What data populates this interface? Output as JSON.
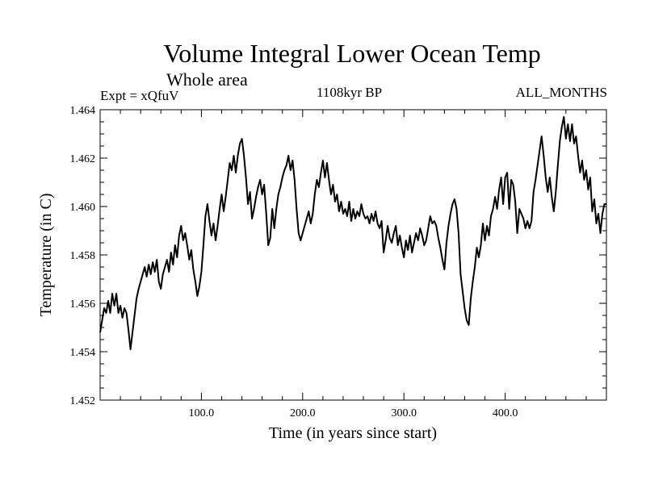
{
  "chart_data": {
    "type": "line",
    "title": "Volume Integral Lower Ocean Temp",
    "subtitle": "Whole area",
    "left_label": "Expt = xQfuV",
    "center_label": "1108kyr BP",
    "right_label": "ALL_MONTHS",
    "xlabel": "Time (in years since start)",
    "ylabel": "Temperature (in C)",
    "xlim": [
      0,
      500
    ],
    "ylim": [
      1.452,
      1.464
    ],
    "xticks": [
      100,
      200,
      300,
      400
    ],
    "xtick_labels": [
      "100.0",
      "200.0",
      "300.0",
      "400.0"
    ],
    "yticks": [
      1.452,
      1.454,
      1.456,
      1.458,
      1.46,
      1.462,
      1.464
    ],
    "ytick_labels": [
      "1.452",
      "1.454",
      "1.456",
      "1.458",
      "1.460",
      "1.462",
      "1.464"
    ],
    "grid": false,
    "series": [
      {
        "name": "temperature",
        "x": [
          0,
          2,
          4,
          6,
          8,
          10,
          12,
          14,
          16,
          18,
          20,
          22,
          24,
          26,
          28,
          30,
          32,
          34,
          36,
          38,
          40,
          42,
          44,
          46,
          48,
          50,
          52,
          54,
          56,
          58,
          60,
          62,
          64,
          66,
          68,
          70,
          72,
          74,
          76,
          78,
          80,
          82,
          84,
          86,
          88,
          90,
          92,
          94,
          96,
          98,
          100,
          102,
          104,
          106,
          108,
          110,
          112,
          114,
          116,
          118,
          120,
          122,
          124,
          126,
          128,
          130,
          132,
          134,
          136,
          138,
          140,
          142,
          144,
          146,
          148,
          150,
          152,
          154,
          156,
          158,
          160,
          162,
          164,
          166,
          168,
          170,
          172,
          174,
          176,
          178,
          180,
          182,
          184,
          186,
          188,
          190,
          192,
          194,
          196,
          198,
          200,
          202,
          204,
          206,
          208,
          210,
          212,
          214,
          216,
          218,
          220,
          222,
          224,
          226,
          228,
          230,
          232,
          234,
          236,
          238,
          240,
          242,
          244,
          246,
          248,
          250,
          252,
          254,
          256,
          258,
          260,
          262,
          264,
          266,
          268,
          270,
          272,
          274,
          276,
          278,
          280,
          282,
          284,
          286,
          288,
          290,
          292,
          294,
          296,
          298,
          300,
          302,
          304,
          306,
          308,
          310,
          312,
          314,
          316,
          318,
          320,
          322,
          324,
          326,
          328,
          330,
          332,
          334,
          336,
          338,
          340,
          342,
          344,
          346,
          348,
          350,
          352,
          354,
          356,
          358,
          360,
          362,
          364,
          366,
          368,
          370,
          372,
          374,
          376,
          378,
          380,
          382,
          384,
          386,
          388,
          390,
          392,
          394,
          396,
          398,
          400,
          402,
          404,
          406,
          408,
          410,
          412,
          414,
          416,
          418,
          420,
          422,
          424,
          426,
          428,
          430,
          432,
          434,
          436,
          438,
          440,
          442,
          444,
          446,
          448,
          450,
          452,
          454,
          456,
          458,
          460,
          462,
          464,
          466,
          468,
          470,
          472,
          474,
          476,
          478,
          480,
          482,
          484,
          486,
          488,
          490,
          492,
          494,
          496,
          498,
          500
        ],
        "y": [
          1.4548,
          1.4553,
          1.4558,
          1.4556,
          1.4561,
          1.4556,
          1.4564,
          1.4559,
          1.4564,
          1.4556,
          1.4559,
          1.4554,
          1.4558,
          1.4556,
          1.4549,
          1.4541,
          1.4548,
          1.4555,
          1.4562,
          1.4566,
          1.4569,
          1.4572,
          1.4575,
          1.4571,
          1.4576,
          1.4572,
          1.4577,
          1.4573,
          1.4578,
          1.4569,
          1.4566,
          1.4572,
          1.4575,
          1.4578,
          1.4573,
          1.4581,
          1.4576,
          1.4584,
          1.4579,
          1.4588,
          1.4592,
          1.4586,
          1.4589,
          1.4584,
          1.4578,
          1.4582,
          1.4574,
          1.4569,
          1.4563,
          1.4567,
          1.4573,
          1.4584,
          1.4596,
          1.4601,
          1.4594,
          1.4588,
          1.4593,
          1.4586,
          1.4592,
          1.4599,
          1.4605,
          1.4598,
          1.4604,
          1.4611,
          1.4618,
          1.4615,
          1.4621,
          1.4614,
          1.4621,
          1.4626,
          1.4628,
          1.4621,
          1.4612,
          1.4601,
          1.4606,
          1.4595,
          1.4599,
          1.4604,
          1.4608,
          1.4611,
          1.4605,
          1.4609,
          1.4597,
          1.4584,
          1.4587,
          1.4599,
          1.4591,
          1.4599,
          1.4605,
          1.4608,
          1.4612,
          1.4615,
          1.4617,
          1.4621,
          1.4615,
          1.4619,
          1.4611,
          1.4599,
          1.4589,
          1.4586,
          1.4589,
          1.4592,
          1.4595,
          1.4598,
          1.4593,
          1.4597,
          1.4605,
          1.4611,
          1.4608,
          1.4614,
          1.4619,
          1.4612,
          1.4618,
          1.4611,
          1.4605,
          1.4609,
          1.4602,
          1.4605,
          1.4598,
          1.4602,
          1.4597,
          1.4599,
          1.4596,
          1.4602,
          1.4594,
          1.4599,
          1.4595,
          1.4598,
          1.4596,
          1.4601,
          1.4597,
          1.4595,
          1.4596,
          1.4593,
          1.4597,
          1.4594,
          1.4598,
          1.4593,
          1.4591,
          1.4594,
          1.4581,
          1.4586,
          1.4592,
          1.4587,
          1.4585,
          1.4589,
          1.4592,
          1.4584,
          1.4588,
          1.4583,
          1.4579,
          1.4586,
          1.4582,
          1.4588,
          1.4581,
          1.4585,
          1.4589,
          1.4586,
          1.4591,
          1.4588,
          1.4584,
          1.4586,
          1.4591,
          1.4596,
          1.4593,
          1.4594,
          1.4592,
          1.4587,
          1.4583,
          1.4578,
          1.4574,
          1.4585,
          1.4592,
          1.4597,
          1.4601,
          1.4603,
          1.4599,
          1.4589,
          1.4572,
          1.4565,
          1.4558,
          1.4553,
          1.4551,
          1.4562,
          1.4569,
          1.4575,
          1.4583,
          1.4579,
          1.4584,
          1.4593,
          1.4586,
          1.4592,
          1.4588,
          1.4596,
          1.4599,
          1.4604,
          1.4599,
          1.4607,
          1.4612,
          1.4601,
          1.4612,
          1.4614,
          1.4599,
          1.4611,
          1.4609,
          1.4602,
          1.4589,
          1.4599,
          1.4597,
          1.4595,
          1.4591,
          1.4594,
          1.4591,
          1.4594,
          1.4606,
          1.4611,
          1.4617,
          1.4623,
          1.4629,
          1.4621,
          1.4612,
          1.4606,
          1.4612,
          1.4604,
          1.4598,
          1.4606,
          1.4617,
          1.4627,
          1.4633,
          1.4637,
          1.4628,
          1.4634,
          1.4627,
          1.4634,
          1.4626,
          1.4629,
          1.4621,
          1.4614,
          1.4619,
          1.4611,
          1.4615,
          1.4607,
          1.4612,
          1.4598,
          1.4603,
          1.4593,
          1.4597,
          1.4589,
          1.4597,
          1.4601,
          1.4601
        ]
      }
    ]
  }
}
